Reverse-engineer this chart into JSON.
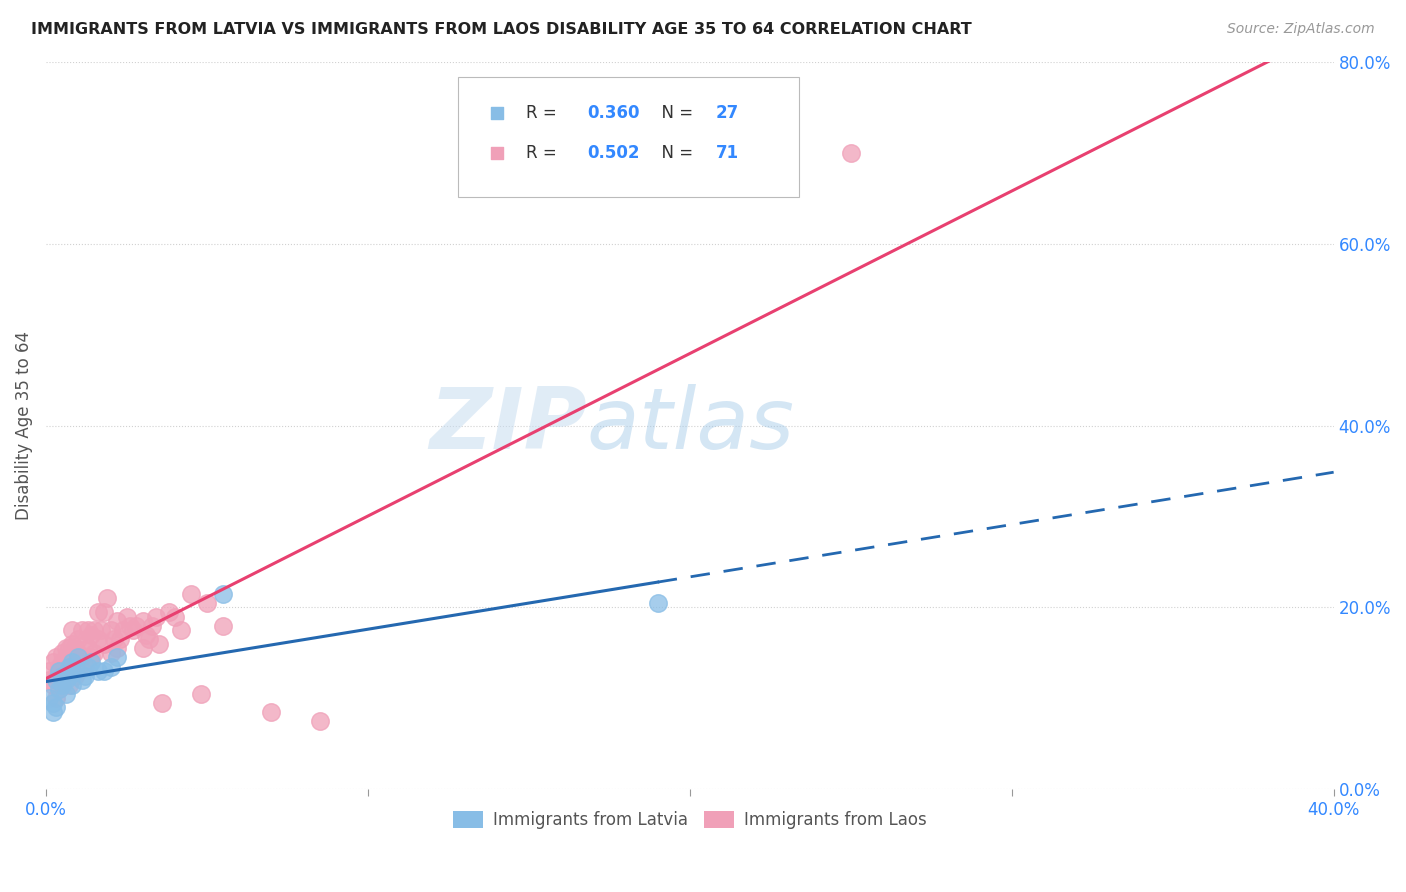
{
  "title": "IMMIGRANTS FROM LATVIA VS IMMIGRANTS FROM LAOS DISABILITY AGE 35 TO 64 CORRELATION CHART",
  "source": "Source: ZipAtlas.com",
  "xlim": [
    0.0,
    0.4
  ],
  "ylim": [
    0.0,
    0.8
  ],
  "ylabel": "Disability Age 35 to 64",
  "watermark_zip": "ZIP",
  "watermark_atlas": "atlas",
  "latvia_R": 0.36,
  "latvia_N": 27,
  "laos_R": 0.502,
  "laos_N": 71,
  "latvia_color": "#88bde6",
  "laos_color": "#f0a0b8",
  "latvia_line_color": "#2468b0",
  "laos_line_color": "#e84070",
  "latvia_x": [
    0.001,
    0.002,
    0.002,
    0.003,
    0.003,
    0.004,
    0.004,
    0.005,
    0.005,
    0.006,
    0.006,
    0.007,
    0.007,
    0.008,
    0.008,
    0.009,
    0.01,
    0.011,
    0.012,
    0.013,
    0.014,
    0.016,
    0.018,
    0.02,
    0.022,
    0.055,
    0.19
  ],
  "latvia_y": [
    0.1,
    0.085,
    0.095,
    0.12,
    0.09,
    0.11,
    0.13,
    0.115,
    0.125,
    0.105,
    0.12,
    0.125,
    0.135,
    0.14,
    0.115,
    0.13,
    0.145,
    0.12,
    0.125,
    0.135,
    0.14,
    0.13,
    0.13,
    0.135,
    0.145,
    0.215,
    0.205
  ],
  "laos_x": [
    0.001,
    0.001,
    0.002,
    0.002,
    0.003,
    0.003,
    0.003,
    0.004,
    0.004,
    0.005,
    0.005,
    0.005,
    0.006,
    0.006,
    0.006,
    0.007,
    0.007,
    0.007,
    0.008,
    0.008,
    0.008,
    0.009,
    0.009,
    0.01,
    0.01,
    0.01,
    0.011,
    0.011,
    0.012,
    0.012,
    0.013,
    0.013,
    0.014,
    0.014,
    0.015,
    0.015,
    0.016,
    0.016,
    0.017,
    0.018,
    0.018,
    0.019,
    0.02,
    0.02,
    0.021,
    0.022,
    0.022,
    0.023,
    0.024,
    0.025,
    0.026,
    0.027,
    0.028,
    0.03,
    0.03,
    0.031,
    0.032,
    0.033,
    0.034,
    0.035,
    0.036,
    0.038,
    0.04,
    0.042,
    0.045,
    0.048,
    0.05,
    0.055,
    0.07,
    0.085,
    0.25
  ],
  "laos_y": [
    0.12,
    0.13,
    0.115,
    0.14,
    0.1,
    0.125,
    0.145,
    0.11,
    0.135,
    0.12,
    0.14,
    0.15,
    0.125,
    0.145,
    0.155,
    0.115,
    0.13,
    0.155,
    0.14,
    0.16,
    0.175,
    0.125,
    0.155,
    0.13,
    0.15,
    0.165,
    0.145,
    0.175,
    0.135,
    0.16,
    0.155,
    0.175,
    0.145,
    0.17,
    0.15,
    0.175,
    0.165,
    0.195,
    0.175,
    0.16,
    0.195,
    0.21,
    0.15,
    0.175,
    0.165,
    0.155,
    0.185,
    0.165,
    0.175,
    0.19,
    0.18,
    0.175,
    0.18,
    0.155,
    0.185,
    0.17,
    0.165,
    0.18,
    0.19,
    0.16,
    0.095,
    0.195,
    0.19,
    0.175,
    0.215,
    0.105,
    0.205,
    0.18,
    0.085,
    0.075,
    0.7
  ]
}
